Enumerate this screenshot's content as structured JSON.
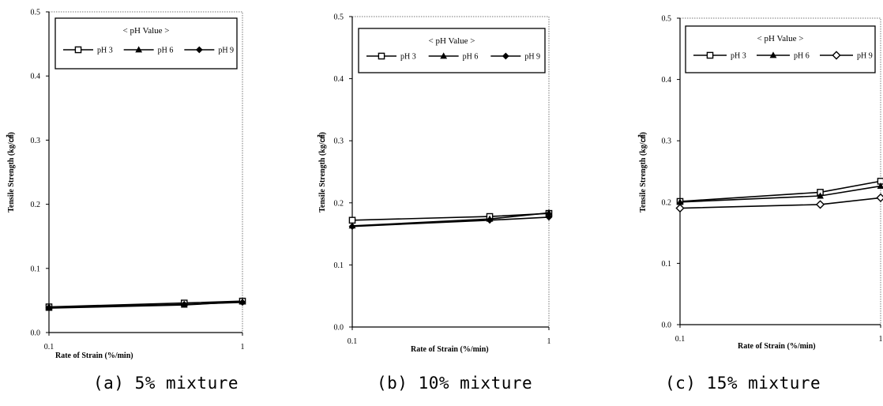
{
  "chart_data": [
    {
      "type": "line",
      "caption": "(a) 5% mixture",
      "ylabel": "Tensile Strength (kg/㎠)",
      "xlabel": "Rate of Strain (%/min)",
      "xscale": "log",
      "xlim": [
        0.1,
        1
      ],
      "ylim": [
        0,
        0.5
      ],
      "x_ticks": [
        "0.1",
        "1"
      ],
      "y_ticks": [
        "0.0",
        "0.1",
        "0.2",
        "0.3",
        "0.4",
        "0.5"
      ],
      "legend_title": "< pH Value >",
      "legend_position": "top",
      "grid": false,
      "series": [
        {
          "name": "pH 3",
          "marker": "square-open",
          "x": [
            0.1,
            0.5,
            1
          ],
          "y": [
            0.04,
            0.046,
            0.049
          ]
        },
        {
          "name": "pH 6",
          "marker": "triangle",
          "x": [
            0.1,
            0.5,
            1
          ],
          "y": [
            0.038,
            0.043,
            0.048
          ]
        },
        {
          "name": "pH 9",
          "marker": "diamond",
          "x": [
            0.1,
            0.5,
            1
          ],
          "y": [
            0.039,
            0.044,
            0.047
          ]
        }
      ]
    },
    {
      "type": "line",
      "caption": "(b) 10% mixture",
      "ylabel": "Tensile Strength (kg/㎠)",
      "xlabel": "Rate of Strain (%/min)",
      "xscale": "log",
      "xlim": [
        0.1,
        1
      ],
      "ylim": [
        0,
        0.5
      ],
      "x_ticks": [
        "0.1",
        "1"
      ],
      "y_ticks": [
        "0.0",
        "0.1",
        "0.2",
        "0.3",
        "0.4",
        "0.5"
      ],
      "legend_title": "< pH Value >",
      "legend_position": "top",
      "grid": false,
      "series": [
        {
          "name": "pH 3",
          "marker": "square-open",
          "x": [
            0.1,
            0.5,
            1
          ],
          "y": [
            0.172,
            0.178,
            0.183
          ]
        },
        {
          "name": "pH 6",
          "marker": "triangle",
          "x": [
            0.1,
            0.5,
            1
          ],
          "y": [
            0.163,
            0.174,
            0.184
          ]
        },
        {
          "name": "pH 9",
          "marker": "diamond",
          "x": [
            0.1,
            0.5,
            1
          ],
          "y": [
            0.162,
            0.172,
            0.177
          ]
        }
      ]
    },
    {
      "type": "line",
      "caption": "(c) 15% mixture",
      "ylabel": "Tensile Strength (kg/㎠)",
      "xlabel": "Rate of Strain (%/min)",
      "xscale": "log",
      "xlim": [
        0.1,
        1
      ],
      "ylim": [
        0,
        0.5
      ],
      "x_ticks": [
        "0.1",
        "1"
      ],
      "y_ticks": [
        "0.0",
        "0.1",
        "0.2",
        "0.3",
        "0.4",
        "0.5"
      ],
      "legend_title": "< pH Value >",
      "legend_position": "top",
      "grid": false,
      "series": [
        {
          "name": "pH 3",
          "marker": "square-open",
          "x": [
            0.1,
            0.5,
            1
          ],
          "y": [
            0.201,
            0.216,
            0.234
          ]
        },
        {
          "name": "pH 6",
          "marker": "triangle",
          "x": [
            0.1,
            0.5,
            1
          ],
          "y": [
            0.2,
            0.21,
            0.226
          ]
        },
        {
          "name": "pH 9",
          "marker": "diamond-open",
          "x": [
            0.1,
            0.5,
            1
          ],
          "y": [
            0.19,
            0.196,
            0.207
          ]
        }
      ]
    }
  ]
}
